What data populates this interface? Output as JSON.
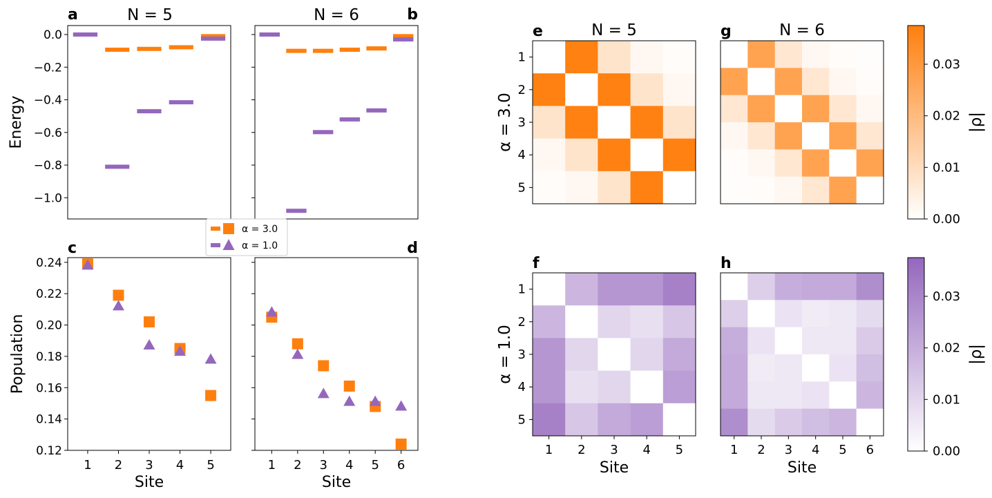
{
  "colors": {
    "orange": "#ff7f0e",
    "purple": "#9467bd"
  },
  "legend": {
    "entries": [
      "α = 3.0",
      "α = 1.0"
    ]
  },
  "chart_data": [
    {
      "id": "a",
      "type": "bar-levels",
      "panel_label": "a",
      "title": "N = 5",
      "ylabel": "Energy",
      "ylim": [
        -1.13,
        0.055
      ],
      "yticks": [
        0.0,
        -0.2,
        -0.4,
        -0.6,
        -0.8,
        -1.0
      ],
      "ytick_labels": [
        "0.0",
        "−0.2",
        "−0.4",
        "−0.6",
        "−0.8",
        "−1.0"
      ],
      "x": [
        1,
        2,
        3,
        4,
        5
      ],
      "series": [
        {
          "name": "α = 3.0",
          "color": "orange",
          "values": [
            0.0,
            -0.093,
            -0.088,
            -0.078,
            -0.01
          ]
        },
        {
          "name": "α = 1.0",
          "color": "purple",
          "values": [
            0.0,
            -0.81,
            -0.47,
            -0.415,
            -0.025
          ]
        }
      ]
    },
    {
      "id": "b",
      "type": "bar-levels",
      "panel_label": "b",
      "title": "N = 6",
      "ylim": [
        -1.13,
        0.055
      ],
      "yticks": [
        0.0,
        -0.2,
        -0.4,
        -0.6,
        -0.8,
        -1.0
      ],
      "x": [
        1,
        2,
        3,
        4,
        5,
        6
      ],
      "series": [
        {
          "name": "α = 3.0",
          "color": "orange",
          "values": [
            0.0,
            -0.1,
            -0.1,
            -0.093,
            -0.085,
            -0.01
          ]
        },
        {
          "name": "α = 1.0",
          "color": "purple",
          "values": [
            0.0,
            -1.08,
            -0.598,
            -0.52,
            -0.465,
            -0.03
          ]
        }
      ]
    },
    {
      "id": "c",
      "type": "scatter",
      "panel_label": "c",
      "xlabel": "Site",
      "ylabel": "Population",
      "ylim": [
        0.12,
        0.243
      ],
      "yticks": [
        0.12,
        0.14,
        0.16,
        0.18,
        0.2,
        0.22,
        0.24
      ],
      "ytick_labels": [
        "0.12",
        "0.14",
        "0.16",
        "0.18",
        "0.20",
        "0.22",
        "0.24"
      ],
      "x": [
        1,
        2,
        3,
        4,
        5
      ],
      "xtick_labels": [
        "1",
        "2",
        "3",
        "4",
        "5"
      ],
      "series": [
        {
          "name": "α = 3.0",
          "marker": "square",
          "color": "orange",
          "values": [
            0.239,
            0.219,
            0.202,
            0.185,
            0.155
          ]
        },
        {
          "name": "α = 1.0",
          "marker": "triangle",
          "color": "purple",
          "values": [
            0.238,
            0.212,
            0.187,
            0.183,
            0.178
          ]
        }
      ]
    },
    {
      "id": "d",
      "type": "scatter",
      "panel_label": "d",
      "xlabel": "Site",
      "ylim": [
        0.12,
        0.243
      ],
      "yticks": [
        0.12,
        0.14,
        0.16,
        0.18,
        0.2,
        0.22,
        0.24
      ],
      "x": [
        1,
        2,
        3,
        4,
        5,
        6
      ],
      "xtick_labels": [
        "1",
        "2",
        "3",
        "4",
        "5",
        "6"
      ],
      "series": [
        {
          "name": "α = 3.0",
          "marker": "square",
          "color": "orange",
          "values": [
            0.205,
            0.188,
            0.174,
            0.161,
            0.148,
            0.124
          ]
        },
        {
          "name": "α = 1.0",
          "marker": "triangle",
          "color": "purple",
          "values": [
            0.208,
            0.181,
            0.156,
            0.151,
            0.151,
            0.148
          ]
        }
      ]
    },
    {
      "id": "e",
      "type": "heatmap",
      "panel_label": "e",
      "title": "N = 5",
      "row_group_label": "α = 3.0",
      "color": "orange",
      "vmax": 0.0375,
      "row_labels": [
        "1",
        "2",
        "3",
        "4",
        "5"
      ],
      "col_labels": [],
      "matrix": [
        [
          0,
          0.037,
          0.008,
          0.002,
          0.001
        ],
        [
          0.037,
          0,
          0.037,
          0.008,
          0.002
        ],
        [
          0.008,
          0.037,
          0,
          0.037,
          0.008
        ],
        [
          0.002,
          0.008,
          0.037,
          0,
          0.037
        ],
        [
          0.001,
          0.002,
          0.008,
          0.037,
          0
        ]
      ]
    },
    {
      "id": "g",
      "type": "heatmap",
      "panel_label": "g",
      "title": "N = 6",
      "color": "orange",
      "vmax": 0.0375,
      "row_labels": [],
      "col_labels": [],
      "matrix": [
        [
          0,
          0.027,
          0.007,
          0.002,
          0.001,
          0.0005
        ],
        [
          0.027,
          0,
          0.027,
          0.007,
          0.002,
          0.001
        ],
        [
          0.007,
          0.027,
          0,
          0.027,
          0.007,
          0.002
        ],
        [
          0.002,
          0.007,
          0.027,
          0,
          0.027,
          0.007
        ],
        [
          0.001,
          0.002,
          0.007,
          0.027,
          0,
          0.027
        ],
        [
          0.0005,
          0.001,
          0.002,
          0.007,
          0.027,
          0
        ]
      ]
    },
    {
      "id": "f",
      "type": "heatmap",
      "panel_label": "f",
      "row_group_label": "α = 1.0",
      "xlabel": "Site",
      "color": "purple",
      "vmax": 0.0375,
      "row_labels": [
        "1",
        "2",
        "3",
        "4",
        "5"
      ],
      "col_labels": [
        "1",
        "2",
        "3",
        "4",
        "5"
      ],
      "matrix": [
        [
          0,
          0.018,
          0.026,
          0.026,
          0.031
        ],
        [
          0.018,
          0,
          0.01,
          0.008,
          0.014
        ],
        [
          0.026,
          0.01,
          0,
          0.01,
          0.021
        ],
        [
          0.026,
          0.008,
          0.01,
          0,
          0.024
        ],
        [
          0.031,
          0.014,
          0.021,
          0.024,
          0
        ]
      ]
    },
    {
      "id": "h",
      "type": "heatmap",
      "panel_label": "h",
      "xlabel": "Site",
      "color": "purple",
      "vmax": 0.0375,
      "row_labels": [],
      "col_labels": [
        "1",
        "2",
        "3",
        "4",
        "5",
        "6"
      ],
      "matrix": [
        [
          0,
          0.012,
          0.02,
          0.021,
          0.021,
          0.028
        ],
        [
          0.012,
          0,
          0.007,
          0.005,
          0.006,
          0.009
        ],
        [
          0.02,
          0.007,
          0,
          0.006,
          0.006,
          0.013
        ],
        [
          0.021,
          0.005,
          0.006,
          0,
          0.007,
          0.016
        ],
        [
          0.021,
          0.006,
          0.006,
          0.007,
          0,
          0.018
        ],
        [
          0.028,
          0.009,
          0.013,
          0.016,
          0.018,
          0
        ]
      ]
    },
    {
      "id": "cbar-top",
      "type": "colorbar",
      "color": "orange",
      "vmax": 0.0375,
      "label": "|ρ|",
      "ticks": [
        0,
        0.01,
        0.02,
        0.03
      ],
      "tick_labels": [
        "0.00",
        "0.01",
        "0.02",
        "0.03"
      ]
    },
    {
      "id": "cbar-bottom",
      "type": "colorbar",
      "color": "purple",
      "vmax": 0.0375,
      "label": "|ρ|",
      "ticks": [
        0,
        0.01,
        0.02,
        0.03
      ],
      "tick_labels": [
        "0.00",
        "0.01",
        "0.02",
        "0.03"
      ]
    }
  ]
}
